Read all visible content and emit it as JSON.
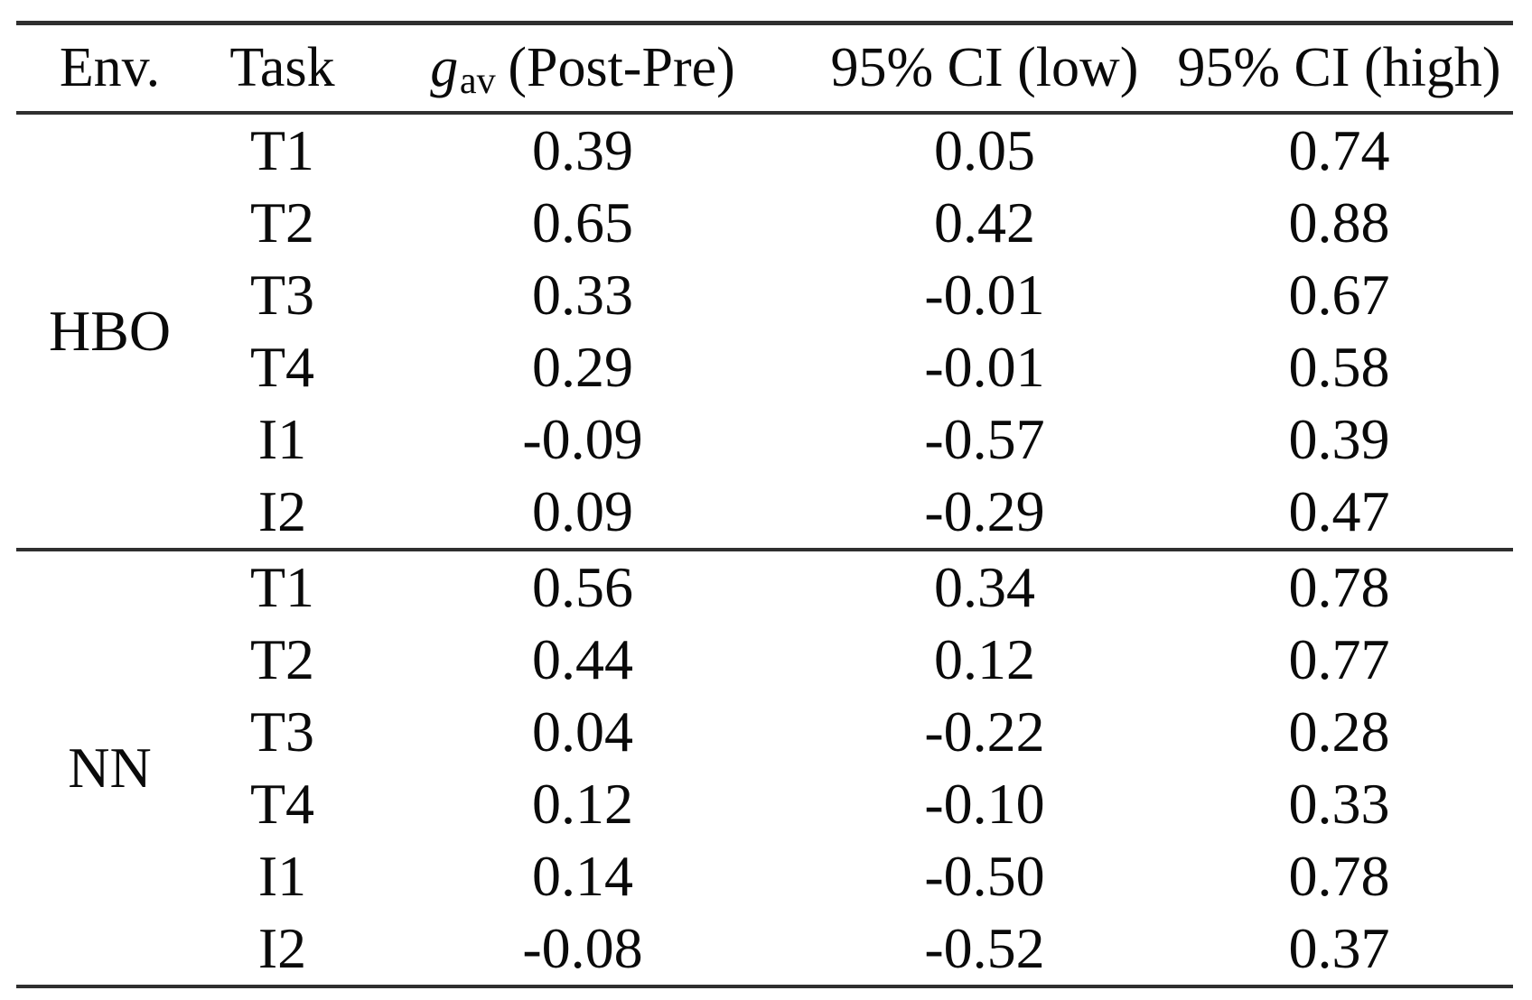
{
  "page": {
    "background_color": "#ffffff",
    "text_color": "#0a0a0a",
    "rule_color": "#2f2f2f"
  },
  "table": {
    "headers": {
      "env": "Env.",
      "task": "Task",
      "g_symbol": "g",
      "g_subscript": "av",
      "g_rest": "(Post-Pre)",
      "ci_low": "95% CI (low)",
      "ci_high": "95% CI (high)"
    },
    "groups": [
      {
        "env": "HBO",
        "rows": [
          {
            "task": "T1",
            "g": "0.39",
            "ci_low": "0.05",
            "ci_high": "0.74"
          },
          {
            "task": "T2",
            "g": "0.65",
            "ci_low": "0.42",
            "ci_high": "0.88"
          },
          {
            "task": "T3",
            "g": "0.33",
            "ci_low": "-0.01",
            "ci_high": "0.67"
          },
          {
            "task": "T4",
            "g": "0.29",
            "ci_low": "-0.01",
            "ci_high": "0.58"
          },
          {
            "task": "I1",
            "g": "-0.09",
            "ci_low": "-0.57",
            "ci_high": "0.39"
          },
          {
            "task": "I2",
            "g": "0.09",
            "ci_low": "-0.29",
            "ci_high": "0.47"
          }
        ]
      },
      {
        "env": "NN",
        "rows": [
          {
            "task": "T1",
            "g": "0.56",
            "ci_low": "0.34",
            "ci_high": "0.78"
          },
          {
            "task": "T2",
            "g": "0.44",
            "ci_low": "0.12",
            "ci_high": "0.77"
          },
          {
            "task": "T3",
            "g": "0.04",
            "ci_low": "-0.22",
            "ci_high": "0.28"
          },
          {
            "task": "T4",
            "g": "0.12",
            "ci_low": "-0.10",
            "ci_high": "0.33"
          },
          {
            "task": "I1",
            "g": "0.14",
            "ci_low": "-0.50",
            "ci_high": "0.78"
          },
          {
            "task": "I2",
            "g": "-0.08",
            "ci_low": "-0.52",
            "ci_high": "0.37"
          }
        ]
      }
    ]
  },
  "chart_data": {
    "type": "table",
    "columns": [
      "Env.",
      "Task",
      "g_av (Post-Pre)",
      "95% CI (low)",
      "95% CI (high)"
    ],
    "rows": [
      [
        "HBO",
        "T1",
        0.39,
        0.05,
        0.74
      ],
      [
        "HBO",
        "T2",
        0.65,
        0.42,
        0.88
      ],
      [
        "HBO",
        "T3",
        0.33,
        -0.01,
        0.67
      ],
      [
        "HBO",
        "T4",
        0.29,
        -0.01,
        0.58
      ],
      [
        "HBO",
        "I1",
        -0.09,
        -0.57,
        0.39
      ],
      [
        "HBO",
        "I2",
        0.09,
        -0.29,
        0.47
      ],
      [
        "NN",
        "T1",
        0.56,
        0.34,
        0.78
      ],
      [
        "NN",
        "T2",
        0.44,
        0.12,
        0.77
      ],
      [
        "NN",
        "T3",
        0.04,
        -0.22,
        0.28
      ],
      [
        "NN",
        "T4",
        0.12,
        -0.1,
        0.33
      ],
      [
        "NN",
        "I1",
        0.14,
        -0.5,
        0.78
      ],
      [
        "NN",
        "I2",
        -0.08,
        -0.52,
        0.37
      ]
    ]
  }
}
